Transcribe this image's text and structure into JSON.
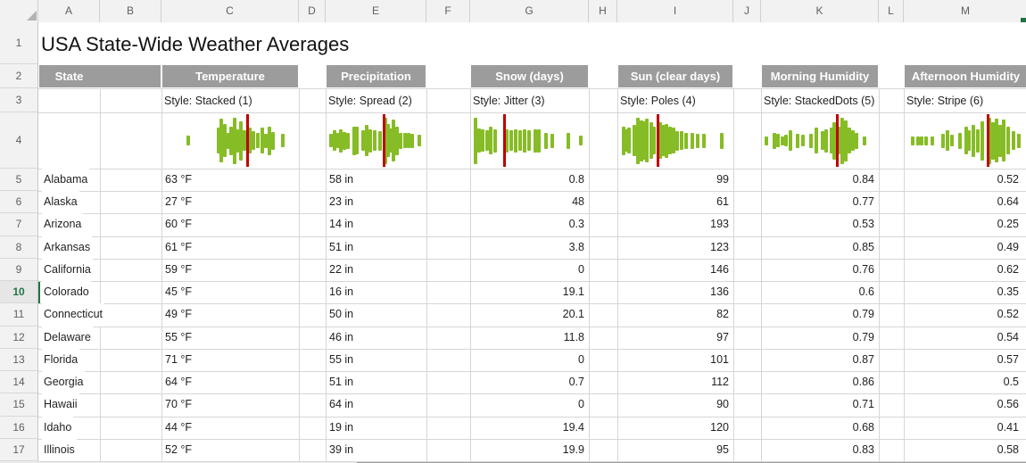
{
  "sheet": {
    "title": "USA State-Wide Weather Averages",
    "column_letters": [
      "A",
      "B",
      "C",
      "D",
      "E",
      "F",
      "G",
      "H",
      "I",
      "J",
      "K",
      "L",
      "M"
    ],
    "row_numbers": [
      "1",
      "2",
      "3",
      "4",
      "5",
      "6",
      "7",
      "8",
      "9",
      "10",
      "11",
      "12",
      "13",
      "14",
      "15",
      "16",
      "17"
    ],
    "active_row": "10"
  },
  "table": {
    "header_cells": [
      {
        "label": "State",
        "col": "A",
        "span_end": "B"
      },
      {
        "label": "Temperature",
        "col": "C"
      },
      {
        "label": "Precipitation",
        "col": "E"
      },
      {
        "label": "Snow (days)",
        "col": "G"
      },
      {
        "label": "Sun (clear days)",
        "col": "I"
      },
      {
        "label": "Morning Humidity",
        "col": "K"
      },
      {
        "label": "Afternoon Humidity",
        "col": "M"
      }
    ],
    "style_labels": [
      {
        "col": "C",
        "text": "Style: Stacked (1)"
      },
      {
        "col": "E",
        "text": "Style: Spread (2)"
      },
      {
        "col": "G",
        "text": "Style: Jitter (3)"
      },
      {
        "col": "I",
        "text": "Style: Poles (4)"
      },
      {
        "col": "K",
        "text": "Style: StackedDots (5)"
      },
      {
        "col": "M",
        "text": "Style: Stripe (6)"
      }
    ],
    "rows": [
      {
        "row": "5",
        "state": "Alabama",
        "temperature": "63 °F",
        "precipitation": "58 in",
        "snow": "0.8",
        "sun": "99",
        "morning_humidity": "0.84",
        "afternoon_humidity": "0.52"
      },
      {
        "row": "6",
        "state": "Alaska",
        "temperature": "27 °F",
        "precipitation": "23 in",
        "snow": "48",
        "sun": "61",
        "morning_humidity": "0.77",
        "afternoon_humidity": "0.64"
      },
      {
        "row": "7",
        "state": "Arizona",
        "temperature": "60 °F",
        "precipitation": "14 in",
        "snow": "0.3",
        "sun": "193",
        "morning_humidity": "0.53",
        "afternoon_humidity": "0.25"
      },
      {
        "row": "8",
        "state": "Arkansas",
        "temperature": "61 °F",
        "precipitation": "51 in",
        "snow": "3.8",
        "sun": "123",
        "morning_humidity": "0.85",
        "afternoon_humidity": "0.49"
      },
      {
        "row": "9",
        "state": "California",
        "temperature": "59 °F",
        "precipitation": "22 in",
        "snow": "0",
        "sun": "146",
        "morning_humidity": "0.76",
        "afternoon_humidity": "0.62"
      },
      {
        "row": "10",
        "state": "Colorado",
        "temperature": "45 °F",
        "precipitation": "16 in",
        "snow": "19.1",
        "sun": "136",
        "morning_humidity": "0.6",
        "afternoon_humidity": "0.35"
      },
      {
        "row": "11",
        "state": "Connecticut",
        "temperature": "49 °F",
        "precipitation": "50 in",
        "snow": "20.1",
        "sun": "82",
        "morning_humidity": "0.79",
        "afternoon_humidity": "0.52"
      },
      {
        "row": "12",
        "state": "Delaware",
        "temperature": "55 °F",
        "precipitation": "46 in",
        "snow": "11.8",
        "sun": "97",
        "morning_humidity": "0.79",
        "afternoon_humidity": "0.54"
      },
      {
        "row": "13",
        "state": "Florida",
        "temperature": "71 °F",
        "precipitation": "55 in",
        "snow": "0",
        "sun": "101",
        "morning_humidity": "0.87",
        "afternoon_humidity": "0.57"
      },
      {
        "row": "14",
        "state": "Georgia",
        "temperature": "64 °F",
        "precipitation": "51 in",
        "snow": "0.7",
        "sun": "112",
        "morning_humidity": "0.86",
        "afternoon_humidity": "0.5"
      },
      {
        "row": "15",
        "state": "Hawaii",
        "temperature": "70 °F",
        "precipitation": "64 in",
        "snow": "0",
        "sun": "90",
        "morning_humidity": "0.71",
        "afternoon_humidity": "0.56"
      },
      {
        "row": "16",
        "state": "Idaho",
        "temperature": "44 °F",
        "precipitation": "19 in",
        "snow": "19.4",
        "sun": "120",
        "morning_humidity": "0.68",
        "afternoon_humidity": "0.41"
      },
      {
        "row": "17",
        "state": "Illinois",
        "temperature": "52 °F",
        "precipitation": "39 in",
        "snow": "19.9",
        "sun": "95",
        "morning_humidity": "0.83",
        "afternoon_humidity": "0.58"
      }
    ]
  },
  "sparklines": [
    {
      "name": "stacked",
      "col": "C",
      "marker": 0.63,
      "bars": [
        [
          0.18,
          0.22
        ],
        [
          0.41,
          0.55
        ],
        [
          0.435,
          0.95
        ],
        [
          0.46,
          0.72
        ],
        [
          0.485,
          0.35
        ],
        [
          0.51,
          0.62
        ],
        [
          0.535,
          1.0
        ],
        [
          0.555,
          0.5
        ],
        [
          0.58,
          0.85
        ],
        [
          0.61,
          0.45
        ],
        [
          0.65,
          0.55
        ],
        [
          0.675,
          0.4
        ],
        [
          0.71,
          0.33
        ],
        [
          0.74,
          0.55
        ],
        [
          0.77,
          0.3
        ],
        [
          0.8,
          0.62
        ],
        [
          0.825,
          0.38
        ],
        [
          0.9,
          0.28
        ]
      ]
    },
    {
      "name": "spread",
      "col": "E",
      "marker": 0.58,
      "bars": [
        [
          0.03,
          0.28
        ],
        [
          0.07,
          0.45
        ],
        [
          0.1,
          0.32
        ],
        [
          0.135,
          0.5
        ],
        [
          0.165,
          0.38
        ],
        [
          0.21,
          0.35
        ],
        [
          0.27,
          0.62
        ],
        [
          0.3,
          0.6
        ],
        [
          0.36,
          0.45
        ],
        [
          0.4,
          0.68
        ],
        [
          0.44,
          0.5
        ],
        [
          0.49,
          0.45
        ],
        [
          0.545,
          0.42
        ],
        [
          0.6,
          1.0
        ],
        [
          0.625,
          0.72
        ],
        [
          0.655,
          0.52
        ],
        [
          0.685,
          0.9
        ],
        [
          0.715,
          0.62
        ],
        [
          0.76,
          0.35
        ],
        [
          0.8,
          0.32
        ],
        [
          0.845,
          0.32
        ],
        [
          0.88,
          0.3
        ],
        [
          0.95,
          0.25
        ]
      ]
    },
    {
      "name": "jitter",
      "col": "G",
      "marker": 0.285,
      "bars": [
        [
          0.02,
          1.0
        ],
        [
          0.055,
          0.52
        ],
        [
          0.09,
          0.48
        ],
        [
          0.125,
          0.45
        ],
        [
          0.16,
          0.6
        ],
        [
          0.2,
          0.5
        ],
        [
          0.3,
          0.5
        ],
        [
          0.335,
          0.45
        ],
        [
          0.375,
          0.5
        ],
        [
          0.415,
          0.45
        ],
        [
          0.455,
          0.5
        ],
        [
          0.495,
          0.45
        ],
        [
          0.55,
          0.5
        ],
        [
          0.585,
          0.5
        ],
        [
          0.645,
          0.35
        ],
        [
          0.7,
          0.3
        ],
        [
          0.845,
          0.35
        ],
        [
          0.95,
          0.22
        ]
      ]
    },
    {
      "name": "poles",
      "col": "I",
      "marker": 0.34,
      "bars": [
        [
          0.03,
          0.62
        ],
        [
          0.055,
          0.48
        ],
        [
          0.08,
          0.55
        ],
        [
          0.13,
          0.68
        ],
        [
          0.165,
          1.0
        ],
        [
          0.19,
          0.88
        ],
        [
          0.215,
          0.82
        ],
        [
          0.245,
          0.95
        ],
        [
          0.28,
          0.78
        ],
        [
          0.31,
          0.6
        ],
        [
          0.365,
          0.78
        ],
        [
          0.39,
          0.68
        ],
        [
          0.42,
          0.74
        ],
        [
          0.45,
          0.6
        ],
        [
          0.48,
          0.55
        ],
        [
          0.52,
          0.42
        ],
        [
          0.56,
          0.4
        ],
        [
          0.6,
          0.35
        ],
        [
          0.65,
          0.35
        ],
        [
          0.7,
          0.3
        ],
        [
          0.76,
          0.3
        ],
        [
          0.92,
          0.35
        ]
      ]
    },
    {
      "name": "stackeddots",
      "col": "K",
      "marker": 0.65,
      "bars": [
        [
          0.02,
          0.2
        ],
        [
          0.095,
          0.35
        ],
        [
          0.125,
          0.28
        ],
        [
          0.165,
          0.2
        ],
        [
          0.195,
          0.25
        ],
        [
          0.235,
          0.45
        ],
        [
          0.3,
          0.3
        ],
        [
          0.35,
          0.25
        ],
        [
          0.42,
          0.3
        ],
        [
          0.465,
          0.55
        ],
        [
          0.52,
          0.4
        ],
        [
          0.555,
          0.5
        ],
        [
          0.6,
          0.55
        ],
        [
          0.63,
          0.8
        ],
        [
          0.67,
          0.6
        ],
        [
          0.7,
          1.0
        ],
        [
          0.73,
          0.88
        ],
        [
          0.76,
          0.55
        ],
        [
          0.79,
          0.45
        ],
        [
          0.825,
          0.35
        ],
        [
          0.9,
          0.2
        ]
      ]
    },
    {
      "name": "stripe",
      "col": "M",
      "marker": 0.686,
      "bars": [
        [
          0.05,
          0.2
        ],
        [
          0.095,
          0.2
        ],
        [
          0.13,
          0.2
        ],
        [
          0.165,
          0.2
        ],
        [
          0.22,
          0.2
        ],
        [
          0.31,
          0.3
        ],
        [
          0.345,
          0.45
        ],
        [
          0.38,
          0.25
        ],
        [
          0.45,
          0.35
        ],
        [
          0.5,
          0.6
        ],
        [
          0.53,
          0.45
        ],
        [
          0.565,
          0.7
        ],
        [
          0.6,
          0.5
        ],
        [
          0.64,
          0.85
        ],
        [
          0.7,
          1.0
        ],
        [
          0.73,
          0.8
        ],
        [
          0.76,
          0.95
        ],
        [
          0.79,
          0.7
        ],
        [
          0.82,
          0.9
        ],
        [
          0.86,
          0.6
        ],
        [
          0.9,
          0.4
        ],
        [
          0.95,
          0.3
        ]
      ]
    }
  ],
  "colors": {
    "bar_green": "#86bc25",
    "marker_red": "#c00000",
    "header_gray": "#9c9c9c",
    "active_green": "#217346",
    "gridline": "#d6d6d6"
  }
}
